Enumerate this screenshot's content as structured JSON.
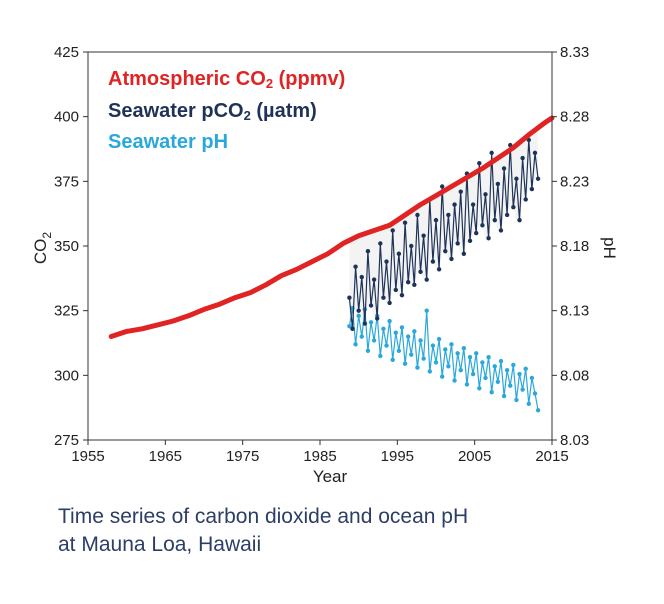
{
  "caption": {
    "line1": "Time series of carbon dioxide and ocean pH",
    "line2": "at Mauna Loa, Hawaii"
  },
  "chart_data": {
    "type": "line",
    "xlabel": "Year",
    "ylabel_left": "CO",
    "ylabel_left_sub": "2",
    "ylabel_right": "pH",
    "xlim": [
      1955,
      2015
    ],
    "ylim_left": [
      275,
      425
    ],
    "ylim_right": [
      8.03,
      8.33
    ],
    "x_ticks": [
      "1955",
      "1965",
      "1975",
      "1985",
      "1995",
      "2005",
      "2015"
    ],
    "y_ticks_left": [
      "275",
      "300",
      "325",
      "350",
      "375",
      "400",
      "425"
    ],
    "y_ticks_right": [
      "8.03",
      "8.08",
      "8.13",
      "8.18",
      "8.23",
      "8.28",
      "8.33"
    ],
    "grid": false,
    "legend": [
      {
        "pre": "Atmospheric CO",
        "sub": "2",
        "post": " (ppmv)"
      },
      {
        "pre": "Seawater pCO",
        "sub": "2",
        "post": " (µatm)"
      },
      {
        "pre": "Seawater pH",
        "sub": "",
        "post": ""
      }
    ],
    "colors": {
      "atmospheric": "#e02424",
      "seawater_pco2": "#1f3358",
      "seawater_ph": "#2aa8dc",
      "band": "#dcdcdc"
    },
    "series": [
      {
        "name": "Atmospheric CO2 (ppmv)",
        "axis": "left",
        "x": [
          1958,
          1960,
          1962,
          1964,
          1966,
          1968,
          1970,
          1972,
          1974,
          1976,
          1978,
          1980,
          1982,
          1984,
          1986,
          1988,
          1990,
          1992,
          1994,
          1996,
          1998,
          2000,
          2002,
          2004,
          2006,
          2008,
          2010,
          2012,
          2014,
          2015
        ],
        "values": [
          315,
          317,
          318,
          319.5,
          321,
          323,
          325.5,
          327.5,
          330,
          332,
          335,
          338.5,
          341,
          344,
          347,
          351,
          354,
          356,
          358,
          362,
          366,
          369.5,
          373,
          376.5,
          380,
          384,
          388,
          393,
          397.5,
          399.5
        ]
      },
      {
        "name": "Seawater pCO2 (µatm)",
        "axis": "left",
        "x": [
          1988.8,
          1989.2,
          1989.6,
          1990.0,
          1990.4,
          1990.8,
          1991.2,
          1991.6,
          1992.0,
          1992.4,
          1992.8,
          1993.2,
          1993.6,
          1994.0,
          1994.4,
          1994.8,
          1995.2,
          1995.6,
          1996.0,
          1996.4,
          1996.8,
          1997.2,
          1997.6,
          1998.0,
          1998.4,
          1998.8,
          1999.2,
          1999.6,
          2000.0,
          2000.4,
          2000.8,
          2001.2,
          2001.6,
          2002.0,
          2002.4,
          2002.8,
          2003.2,
          2003.6,
          2004.0,
          2004.4,
          2004.8,
          2005.2,
          2005.6,
          2006.0,
          2006.4,
          2006.8,
          2007.2,
          2007.6,
          2008.0,
          2008.4,
          2008.8,
          2009.2,
          2009.6,
          2010.0,
          2010.4,
          2010.8,
          2011.2,
          2011.6,
          2012.0,
          2012.4,
          2012.8,
          2013.2
        ],
        "values": [
          330,
          318,
          342,
          325,
          338,
          320,
          348,
          327,
          337,
          322,
          351,
          330,
          344,
          328,
          356,
          333,
          347,
          331,
          359,
          336,
          350,
          335,
          362,
          340,
          354,
          337,
          368,
          344,
          360,
          341,
          373,
          348,
          362,
          345,
          366,
          351,
          371,
          347,
          378,
          352,
          366,
          355,
          382,
          358,
          370,
          353,
          386,
          360,
          374,
          356,
          380,
          362,
          389,
          365,
          376,
          360,
          384,
          368,
          391,
          372,
          386,
          376
        ]
      },
      {
        "name": "Seawater pH",
        "axis": "right",
        "x": [
          1988.8,
          1989.2,
          1989.6,
          1990.0,
          1990.4,
          1990.8,
          1991.2,
          1991.6,
          1992.0,
          1992.4,
          1992.8,
          1993.2,
          1993.6,
          1994.0,
          1994.4,
          1994.8,
          1995.2,
          1995.6,
          1996.0,
          1996.4,
          1996.8,
          1997.2,
          1997.6,
          1998.0,
          1998.4,
          1998.8,
          1999.2,
          1999.6,
          2000.0,
          2000.4,
          2000.8,
          2001.2,
          2001.6,
          2002.0,
          2002.4,
          2002.8,
          2003.2,
          2003.6,
          2004.0,
          2004.4,
          2004.8,
          2005.2,
          2005.6,
          2006.0,
          2006.4,
          2006.8,
          2007.2,
          2007.6,
          2008.0,
          2008.4,
          2008.8,
          2009.2,
          2009.6,
          2010.0,
          2010.4,
          2010.8,
          2011.2,
          2011.6,
          2012.0,
          2012.4,
          2012.8,
          2013.2
        ],
        "values": [
          8.118,
          8.132,
          8.104,
          8.126,
          8.11,
          8.131,
          8.099,
          8.121,
          8.107,
          8.126,
          8.095,
          8.116,
          8.103,
          8.122,
          8.092,
          8.113,
          8.099,
          8.117,
          8.089,
          8.11,
          8.096,
          8.114,
          8.086,
          8.107,
          8.093,
          8.13,
          8.083,
          8.103,
          8.09,
          8.108,
          8.079,
          8.1,
          8.087,
          8.104,
          8.076,
          8.097,
          8.084,
          8.101,
          8.073,
          8.094,
          8.081,
          8.097,
          8.07,
          8.09,
          8.078,
          8.094,
          8.067,
          8.087,
          8.075,
          8.091,
          8.064,
          8.084,
          8.072,
          8.088,
          8.061,
          8.081,
          8.069,
          8.085,
          8.058,
          8.078,
          8.066,
          8.053
        ]
      }
    ]
  }
}
